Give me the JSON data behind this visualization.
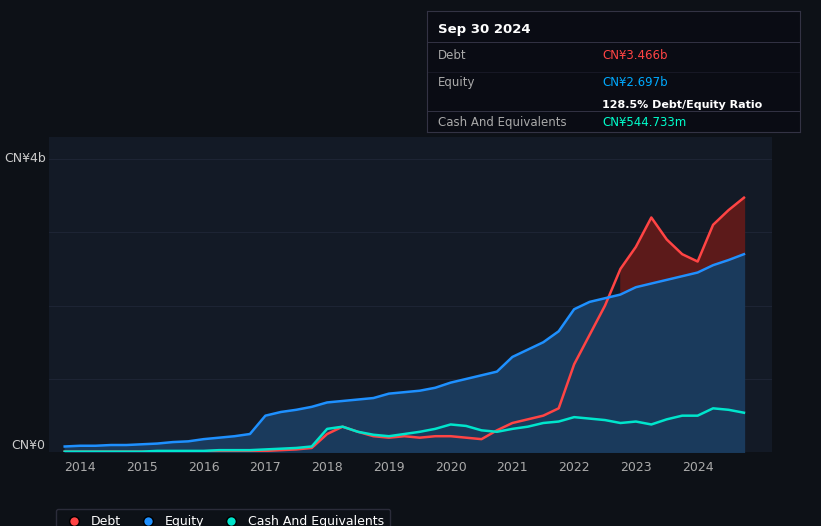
{
  "bg_color": "#0d1117",
  "plot_bg_color": "#131a26",
  "title_box": {
    "date": "Sep 30 2024",
    "debt_label": "Debt",
    "debt_value": "CN¥3.466b",
    "debt_color": "#ff4444",
    "equity_label": "Equity",
    "equity_value": "CN¥2.697b",
    "equity_color": "#00aaff",
    "ratio_text": "128.5% Debt/Equity Ratio",
    "ratio_color": "#ffffff",
    "cash_label": "Cash And Equivalents",
    "cash_value": "CN¥544.733m",
    "cash_color": "#00ffcc",
    "box_bg": "#0a0c14",
    "box_border": "#333344"
  },
  "ylabel_top": "CN¥4b",
  "ylabel_bottom": "CN¥0",
  "debt_color": "#ff4444",
  "equity_color": "#1e90ff",
  "cash_color": "#00e5cc",
  "equity_fill_color": "#1a3a5c",
  "debt_fill_color": "#5c1a1a",
  "xlim": [
    2013.5,
    2025.2
  ],
  "ylim": [
    0,
    4.3
  ],
  "xticks": [
    2014,
    2015,
    2016,
    2017,
    2018,
    2019,
    2020,
    2021,
    2022,
    2023,
    2024
  ],
  "grid_color": "#1e2535",
  "legend_debt": "Debt",
  "legend_equity": "Equity",
  "legend_cash": "Cash And Equivalents",
  "legend_bg": "#0d1117",
  "legend_border": "#333344"
}
